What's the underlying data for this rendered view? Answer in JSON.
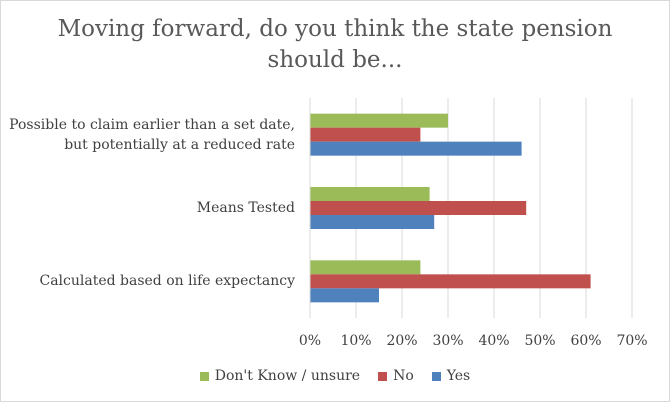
{
  "chart_data": {
    "type": "bar",
    "orientation": "horizontal",
    "title": "Moving forward, do you think the state pension\nshould be...",
    "categories": [
      "Possible to claim earlier than a set date,\nbut potentially at a reduced rate",
      "Means Tested",
      "Calculated based on life expectancy"
    ],
    "series": [
      {
        "name": "Don't Know / unsure",
        "color": "#9bbb59",
        "values": [
          30,
          26,
          24
        ]
      },
      {
        "name": "No",
        "color": "#c0504d",
        "values": [
          24,
          47,
          61
        ]
      },
      {
        "name": "Yes",
        "color": "#4f81bd",
        "values": [
          46,
          27,
          15
        ]
      }
    ],
    "xlim": [
      0,
      70
    ],
    "ticks": [
      "0%",
      "10%",
      "20%",
      "30%",
      "40%",
      "50%",
      "60%",
      "70%"
    ],
    "grid": true,
    "legend_position": "bottom"
  }
}
